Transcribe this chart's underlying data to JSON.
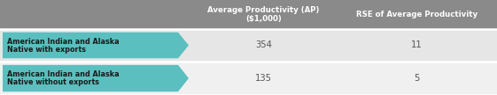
{
  "header_col1_line1": "Average Productivity (AP)",
  "header_col1_line2": "($1,000)",
  "header_col2": "RSE of Average Productivity",
  "rows": [
    {
      "label_line1": "American Indian and Alaska",
      "label_line2": "Native with exports",
      "val1": "354",
      "val2": "11"
    },
    {
      "label_line1": "American Indian and Alaska",
      "label_line2": "Native without exports",
      "val1": "135",
      "val2": "5"
    }
  ],
  "header_bg": "#8a8a8a",
  "header_text_color": "#ffffff",
  "row1_bg": "#e6e6e6",
  "row2_bg": "#f0f0f0",
  "arrow_color": "#5bbfbf",
  "label_text_color": "#1a1a1a",
  "value_text_color": "#555555",
  "col_bounds": [
    0,
    215,
    380,
    561
  ],
  "row_bounds": [
    0,
    33,
    70,
    108
  ],
  "fig_width": 5.61,
  "fig_height": 1.08,
  "dpi": 100
}
